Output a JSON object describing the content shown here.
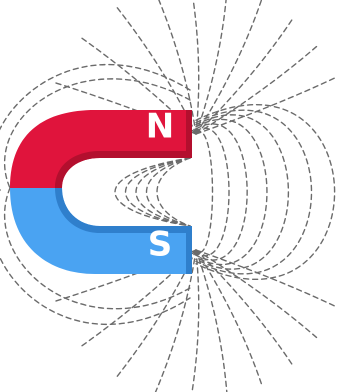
{
  "magnet": {
    "north_label": "N",
    "south_label": "S",
    "north_color": "#e0143c",
    "north_color_dark": "#b30f2e",
    "south_color": "#4aa3f2",
    "south_color_dark": "#2f7fcc"
  },
  "field_lines": {
    "color": "#6b6b6b"
  }
}
